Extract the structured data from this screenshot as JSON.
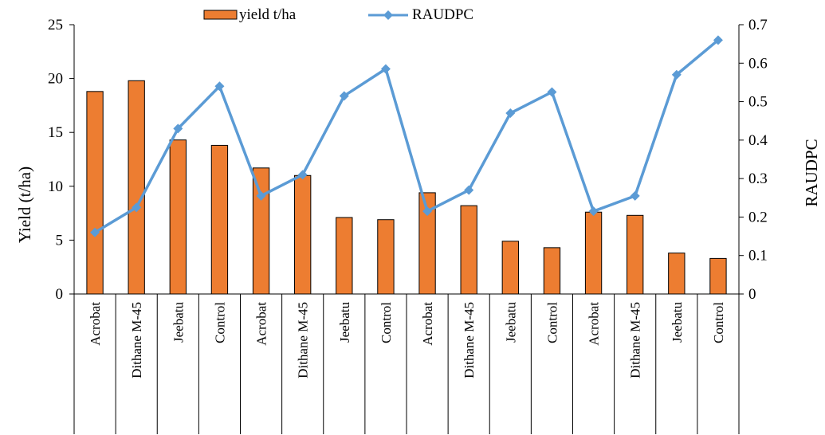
{
  "chart_data": {
    "type": "bar",
    "categories": [
      "Acrobat",
      "Dithane M-45",
      "Jeebatu",
      "Control",
      "Acrobat",
      "Dithane M-45",
      "Jeebatu",
      "Control",
      "Acrobat",
      "Dithane M-45",
      "Jeebatu",
      "Control",
      "Acrobat",
      "Dithane M-45",
      "Jeebatu",
      "Control"
    ],
    "series": [
      {
        "name": "yield t/ha",
        "kind": "bar",
        "axis": "left",
        "color": "#ED7D31",
        "values": [
          18.8,
          19.8,
          14.3,
          13.8,
          11.7,
          11.0,
          7.1,
          6.9,
          9.4,
          8.2,
          4.9,
          4.3,
          7.6,
          7.3,
          3.8,
          3.3
        ]
      },
      {
        "name": "RAUDPC",
        "kind": "line",
        "axis": "right",
        "color": "#5B9BD5",
        "marker": "diamond",
        "values": [
          0.16,
          0.225,
          0.43,
          0.54,
          0.255,
          0.31,
          0.515,
          0.585,
          0.215,
          0.27,
          0.47,
          0.525,
          0.215,
          0.255,
          0.57,
          0.66
        ]
      }
    ],
    "ylabel": "Yield (t/ha)",
    "ylabel_right": "RAUDPC",
    "ylim": [
      0,
      25
    ],
    "ylim_right": [
      0,
      0.7
    ],
    "yticks": [
      "0",
      "5",
      "10",
      "15",
      "20",
      "25"
    ],
    "yticks_right": [
      "0",
      "0.1",
      "0.2",
      "0.3",
      "0.4",
      "0.5",
      "0.6",
      "0.7"
    ],
    "grid": false,
    "legend": "top-center"
  }
}
